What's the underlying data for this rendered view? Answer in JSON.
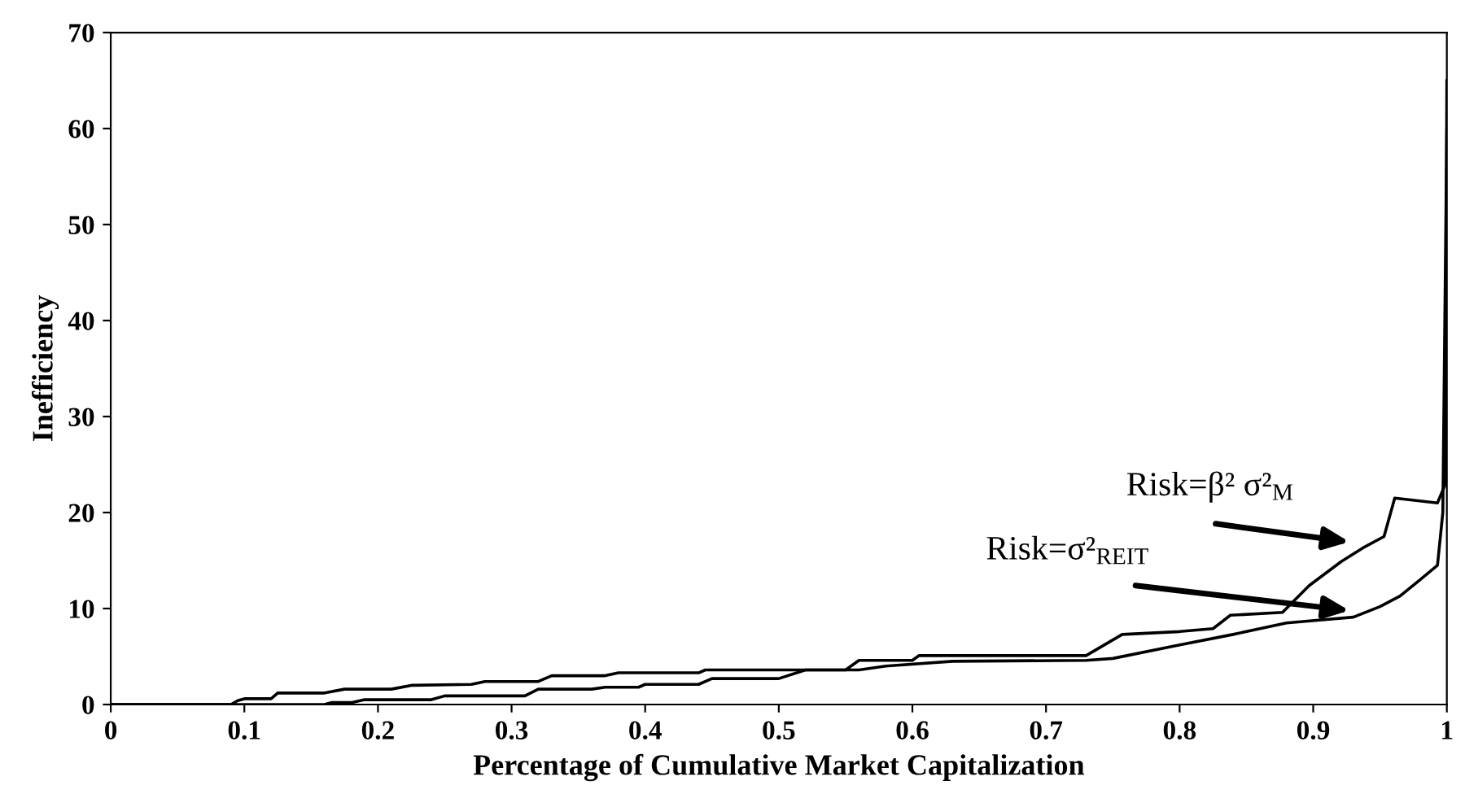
{
  "chart_data": {
    "type": "line",
    "xlabel": "Percentage of Cumulative Market Capitalization",
    "ylabel": "Inefficiency",
    "xlim": [
      0,
      1
    ],
    "ylim": [
      0,
      70
    ],
    "xticks": [
      0,
      0.1,
      0.2,
      0.3,
      0.4,
      0.5,
      0.6,
      0.7,
      0.8,
      0.9,
      1
    ],
    "yticks": [
      0,
      10,
      20,
      30,
      40,
      50,
      60,
      70
    ],
    "grid": false,
    "legend": false,
    "marker": "none",
    "line_style": "solid",
    "series": [
      {
        "color": "#000000",
        "x": [
          0,
          0.09,
          0.095,
          0.1,
          0.12,
          0.125,
          0.16,
          0.175,
          0.21,
          0.225,
          0.27,
          0.28,
          0.32,
          0.33,
          0.37,
          0.38,
          0.44,
          0.445,
          0.55,
          0.56,
          0.6,
          0.605,
          0.73,
          0.757,
          0.8,
          0.825,
          0.838,
          0.877,
          0.897,
          0.921,
          0.937,
          0.953,
          0.961,
          0.993,
          0.999,
          1.0
        ],
        "values": [
          0,
          0,
          0.4,
          0.6,
          0.6,
          1.2,
          1.2,
          1.6,
          1.6,
          2.0,
          2.1,
          2.4,
          2.4,
          3.0,
          3.0,
          3.3,
          3.3,
          3.6,
          3.6,
          4.6,
          4.6,
          5.1,
          5.1,
          7.3,
          7.6,
          7.9,
          9.3,
          9.6,
          12.4,
          14.9,
          16.3,
          17.5,
          21.5,
          21.0,
          23,
          65
        ]
      },
      {
        "color": "#000000",
        "x": [
          0,
          0.16,
          0.165,
          0.18,
          0.19,
          0.24,
          0.25,
          0.31,
          0.32,
          0.36,
          0.37,
          0.395,
          0.4,
          0.44,
          0.45,
          0.5,
          0.52,
          0.56,
          0.58,
          0.63,
          0.73,
          0.75,
          0.8,
          0.84,
          0.88,
          0.93,
          0.95,
          0.965,
          0.98,
          0.993,
          0.997,
          1.0
        ],
        "values": [
          0,
          0,
          0.2,
          0.2,
          0.5,
          0.5,
          0.9,
          0.9,
          1.6,
          1.6,
          1.8,
          1.8,
          2.1,
          2.1,
          2.7,
          2.7,
          3.6,
          3.6,
          4.0,
          4.5,
          4.6,
          4.8,
          6.2,
          7.3,
          8.5,
          9.1,
          10.2,
          11.3,
          13.0,
          14.5,
          20,
          60
        ]
      }
    ],
    "annotations": [
      "Risk=β² σ²$_{M}$",
      "Risk=σ²$_{REIT}$"
    ]
  }
}
